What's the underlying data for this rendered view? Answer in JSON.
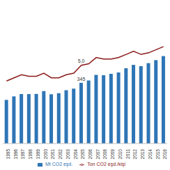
{
  "chart_data": {
    "type": "bar",
    "categories": [
      "1995",
      "1996",
      "1997",
      "1998",
      "1999",
      "2000",
      "2001",
      "2002",
      "2003",
      "2004",
      "2005",
      "2006",
      "2007",
      "2008",
      "2009",
      "2010",
      "2011",
      "2012",
      "2013",
      "2014",
      "2015",
      "2016"
    ],
    "series": [
      {
        "name": "Mt CO2 eşd.",
        "type": "bar",
        "color": "#2e75b6",
        "values": [
          248,
          268,
          281,
          281,
          282,
          298,
          280,
          286,
          303,
          312,
          345,
          358,
          390,
          388,
          396,
          404,
          428,
          447,
          440,
          457,
          474,
          497
        ],
        "value_labels": [
          null,
          null,
          null,
          null,
          null,
          null,
          null,
          null,
          null,
          null,
          "345",
          null,
          null,
          null,
          null,
          null,
          null,
          null,
          null,
          null,
          null,
          null
        ]
      },
      {
        "name": "Ton CO2 eşd./kişi",
        "type": "line",
        "axis": "y2",
        "color": "#8b1a1a",
        "values": [
          4.0,
          4.2,
          4.4,
          4.3,
          4.3,
          4.5,
          4.2,
          4.2,
          4.4,
          4.5,
          5.0,
          5.1,
          5.5,
          5.4,
          5.4,
          5.5,
          5.7,
          5.9,
          5.7,
          5.8,
          6.0,
          6.2
        ],
        "value_labels": [
          null,
          null,
          null,
          null,
          null,
          null,
          null,
          null,
          null,
          null,
          "5,0",
          null,
          null,
          null,
          null,
          null,
          null,
          null,
          null,
          null,
          null,
          null
        ]
      }
    ],
    "ylim": [
      0,
      800
    ],
    "y2lim": [
      0,
      9
    ],
    "tick_labels": "x",
    "data_labels": true,
    "legend": "bottom"
  }
}
